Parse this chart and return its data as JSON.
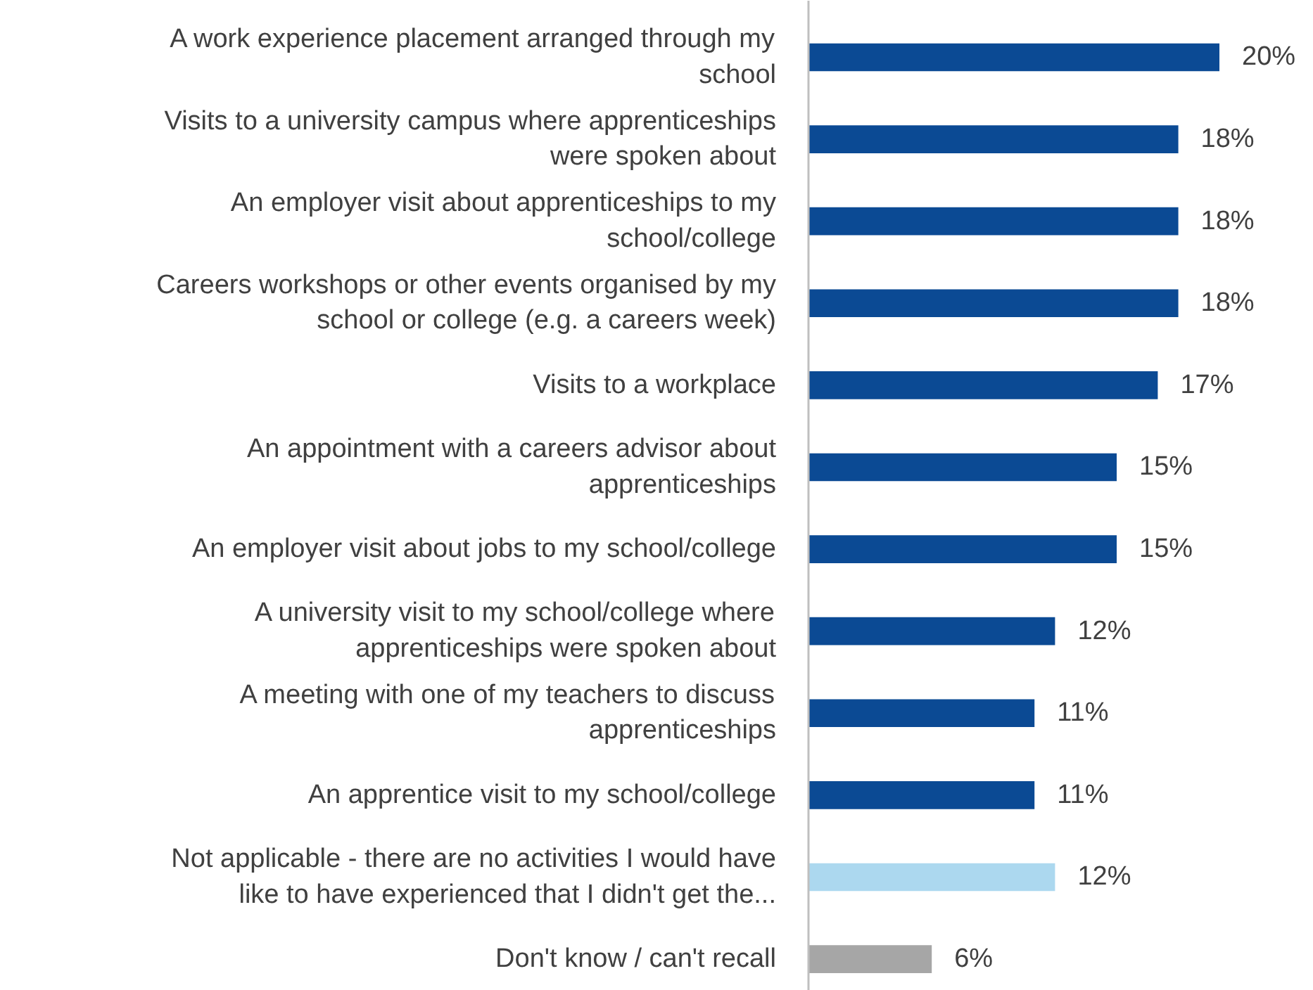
{
  "chart_data": {
    "type": "bar",
    "orientation": "horizontal",
    "categories": [
      "A work experience placement arranged through my school",
      "Visits to a university campus where apprenticeships were spoken about",
      "An employer visit about apprenticeships to my school/college",
      "Careers workshops or other events organised by my school or college (e.g. a careers week)",
      "Visits to a workplace",
      "An appointment with a careers advisor about apprenticeships",
      "An employer visit about jobs to my school/college",
      "A university visit to my school/college where apprenticeships were spoken about",
      "A meeting with one of my teachers to discuss apprenticeships",
      "An apprentice visit to my school/college",
      "Not applicable - there are no activities I would have like to have experienced that I didn't get the...",
      "Don't know / can't recall"
    ],
    "values": [
      20,
      18,
      18,
      18,
      17,
      15,
      15,
      12,
      11,
      11,
      12,
      6
    ],
    "colors": [
      "#0b4a94",
      "#0b4a94",
      "#0b4a94",
      "#0b4a94",
      "#0b4a94",
      "#0b4a94",
      "#0b4a94",
      "#0b4a94",
      "#0b4a94",
      "#0b4a94",
      "#acd8ef",
      "#a6a6a6"
    ],
    "value_labels": [
      "20%",
      "18%",
      "18%",
      "18%",
      "17%",
      "15%",
      "15%",
      "12%",
      "11%",
      "11%",
      "12%",
      "6%"
    ]
  }
}
